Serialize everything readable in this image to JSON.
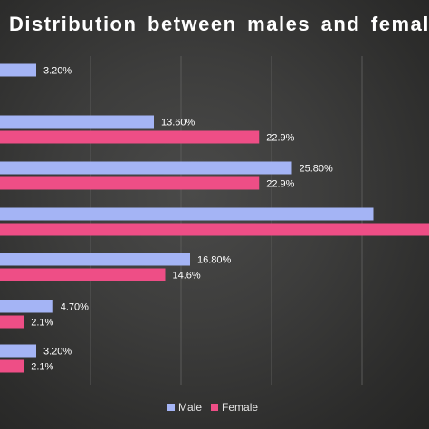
{
  "chart_data": {
    "type": "bar",
    "orientation": "horizontal",
    "title": "Distribution between males and females",
    "xlabel": "",
    "ylabel": "",
    "xlim": [
      0,
      40
    ],
    "grid": true,
    "legend_position": "bottom",
    "categories": [
      "",
      "",
      "",
      "",
      "",
      "",
      ""
    ],
    "series": [
      {
        "name": "Male",
        "color": "#a4b4f5",
        "values": [
          3.2,
          13.6,
          25.8,
          33.0,
          16.8,
          4.7,
          3.2
        ],
        "labels": [
          "3.20%",
          "13.60%",
          "25.80%",
          "",
          "16.80%",
          "4.70%",
          "3.20%"
        ]
      },
      {
        "name": "Female",
        "color": "#ee4e86",
        "values": [
          null,
          22.9,
          22.9,
          38.0,
          14.6,
          2.1,
          2.1
        ],
        "labels": [
          "",
          "22.9%",
          "22.9%",
          "",
          "14.6%",
          "2.1%",
          "2.1%"
        ]
      }
    ]
  }
}
